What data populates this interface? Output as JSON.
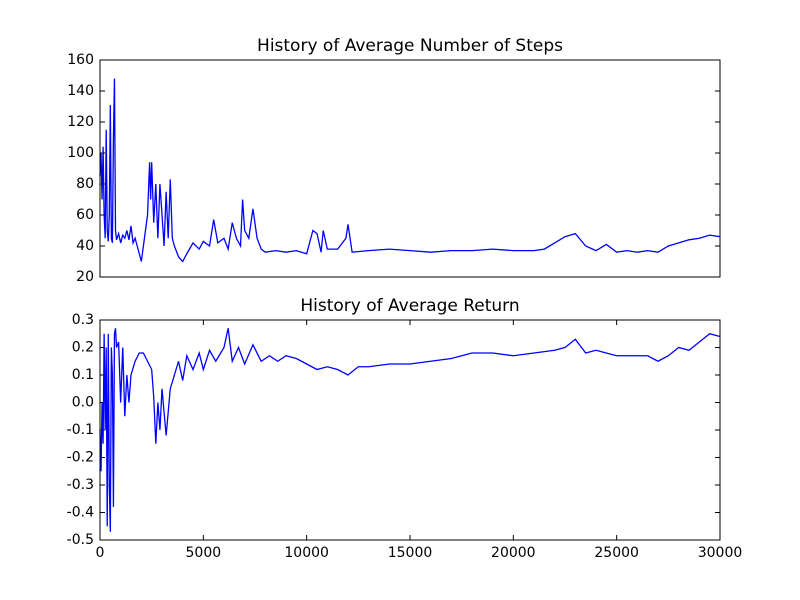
{
  "chart_data": [
    {
      "type": "line",
      "title": "History of Average Number of Steps",
      "x": [
        0,
        50,
        100,
        150,
        200,
        250,
        300,
        350,
        400,
        450,
        500,
        550,
        600,
        650,
        700,
        750,
        800,
        900,
        1000,
        1100,
        1200,
        1300,
        1400,
        1500,
        1600,
        1700,
        1800,
        1900,
        2000,
        2100,
        2200,
        2300,
        2400,
        2450,
        2500,
        2600,
        2700,
        2800,
        2900,
        3000,
        3100,
        3200,
        3300,
        3400,
        3500,
        3600,
        3800,
        4000,
        4200,
        4500,
        4800,
        5000,
        5300,
        5500,
        5700,
        6000,
        6200,
        6400,
        6600,
        6800,
        6900,
        7000,
        7200,
        7400,
        7600,
        7800,
        8000,
        8500,
        9000,
        9500,
        10000,
        10300,
        10500,
        10700,
        10800,
        11000,
        11500,
        11900,
        12000,
        12200,
        13000,
        14000,
        15000,
        16000,
        17000,
        18000,
        19000,
        20000,
        21000,
        21500,
        22000,
        22500,
        23000,
        23500,
        24000,
        24500,
        25000,
        25500,
        26000,
        26500,
        27000,
        27500,
        28000,
        28500,
        29000,
        29500,
        30000
      ],
      "values": [
        85,
        100,
        70,
        104,
        60,
        45,
        115,
        50,
        43,
        60,
        131,
        45,
        42,
        110,
        148,
        50,
        44,
        48,
        42,
        47,
        45,
        50,
        44,
        53,
        42,
        45,
        40,
        35,
        30,
        40,
        50,
        60,
        94,
        70,
        94,
        55,
        80,
        45,
        80,
        60,
        40,
        75,
        45,
        83,
        45,
        40,
        33,
        30,
        35,
        42,
        38,
        43,
        40,
        57,
        42,
        45,
        38,
        55,
        45,
        40,
        70,
        50,
        45,
        64,
        45,
        38,
        36,
        37,
        36,
        37,
        35,
        50,
        48,
        36,
        50,
        38,
        38,
        45,
        54,
        36,
        37,
        38,
        37,
        36,
        37,
        37,
        38,
        37,
        37,
        38,
        42,
        46,
        48,
        40,
        37,
        41,
        36,
        37,
        36,
        37,
        36,
        40,
        42,
        44,
        45,
        47,
        46
      ],
      "color": "#0000ff",
      "xlim": [
        0,
        30000
      ],
      "ylim": [
        20,
        160
      ],
      "yticks": [
        20,
        40,
        60,
        80,
        100,
        120,
        140,
        160
      ]
    },
    {
      "type": "line",
      "title": "History of Average Return",
      "x": [
        0,
        50,
        100,
        150,
        200,
        250,
        300,
        350,
        400,
        450,
        500,
        550,
        600,
        650,
        700,
        750,
        800,
        900,
        1000,
        1100,
        1200,
        1300,
        1400,
        1500,
        1700,
        1900,
        2100,
        2300,
        2500,
        2600,
        2700,
        2800,
        2900,
        3000,
        3200,
        3400,
        3600,
        3800,
        4000,
        4200,
        4500,
        4800,
        5000,
        5300,
        5600,
        6000,
        6200,
        6400,
        6700,
        7000,
        7400,
        7800,
        8200,
        8600,
        9000,
        9500,
        10000,
        10500,
        11000,
        11500,
        12000,
        12500,
        13000,
        14000,
        15000,
        16000,
        17000,
        18000,
        19000,
        20000,
        21000,
        22000,
        22500,
        23000,
        23500,
        24000,
        25000,
        26000,
        26500,
        27000,
        27500,
        28000,
        28500,
        29000,
        29500,
        30000
      ],
      "values": [
        -0.1,
        -0.25,
        0.0,
        -0.15,
        0.25,
        -0.1,
        0.2,
        -0.45,
        0.25,
        -0.3,
        -0.47,
        0.2,
        0.1,
        -0.38,
        0.25,
        0.27,
        0.2,
        0.22,
        0.0,
        0.2,
        -0.05,
        0.1,
        0.0,
        0.1,
        0.15,
        0.18,
        0.18,
        0.15,
        0.12,
        0.02,
        -0.15,
        0.0,
        -0.1,
        0.05,
        -0.12,
        0.05,
        0.1,
        0.15,
        0.08,
        0.17,
        0.12,
        0.18,
        0.12,
        0.19,
        0.15,
        0.2,
        0.27,
        0.15,
        0.2,
        0.14,
        0.21,
        0.15,
        0.17,
        0.15,
        0.17,
        0.16,
        0.14,
        0.12,
        0.13,
        0.12,
        0.1,
        0.13,
        0.13,
        0.14,
        0.14,
        0.15,
        0.16,
        0.18,
        0.18,
        0.17,
        0.18,
        0.19,
        0.2,
        0.23,
        0.18,
        0.19,
        0.17,
        0.17,
        0.17,
        0.15,
        0.17,
        0.2,
        0.19,
        0.22,
        0.25,
        0.24
      ],
      "color": "#0000ff",
      "xlim": [
        0,
        30000
      ],
      "ylim": [
        -0.5,
        0.3
      ],
      "yticks": [
        -0.5,
        -0.4,
        -0.3,
        -0.2,
        -0.1,
        {
          "value": 0,
          "label": "0.0"
        },
        0.1,
        0.2,
        0.3
      ],
      "xticks": [
        0,
        5000,
        10000,
        15000,
        20000,
        25000,
        30000
      ]
    }
  ]
}
